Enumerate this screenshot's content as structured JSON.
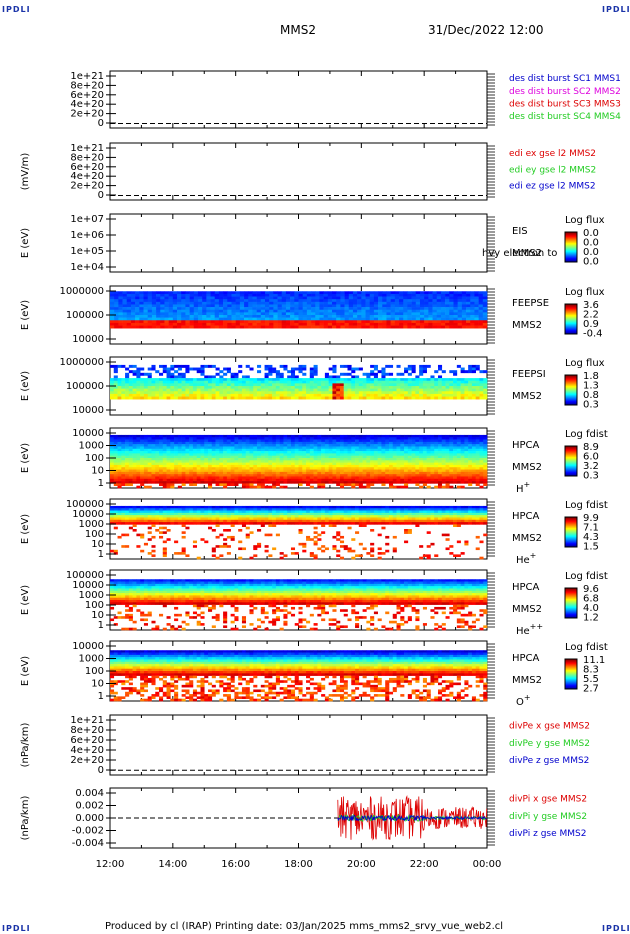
{
  "header": {
    "corner_tl": "IPDLI",
    "corner_tr": "IPDLI",
    "corner_bl": "IPDLI",
    "corner_br": "IPDLI",
    "title": "MMS2",
    "datetime": "31/Dec/2022 12:00"
  },
  "footer": {
    "text": "Produced by cl (IRAP)   Printing date: 03/Jan/2025   mms_mms2_srvy_vue_web2.cl"
  },
  "colors": {
    "black": "#000000",
    "blue": "#0000cc",
    "magenta": "#dd00dd",
    "red": "#dd0000",
    "green": "#22cc22",
    "darkblue": "#000099"
  },
  "chart_data": [
    {
      "type": "line",
      "panel": "des_dist",
      "ylim": [
        0,
        1.2e+21
      ],
      "ytick_labels": [
        "1e+21",
        "8e+20",
        "6e+20",
        "4e+20",
        "2e+20",
        "0"
      ],
      "xlim_hours": [
        12,
        24
      ],
      "series": [
        {
          "name": "des dist burst SC1 MMS1",
          "color": "#0000cc",
          "values": []
        },
        {
          "name": "des dist burst SC2 MMS2",
          "color": "#dd00dd",
          "values": []
        },
        {
          "name": "des dist burst SC3 MMS3",
          "color": "#dd0000",
          "values": []
        },
        {
          "name": "des dist burst SC4 MMS4",
          "color": "#22cc22",
          "values": []
        }
      ],
      "zero_line": true
    },
    {
      "type": "line",
      "panel": "edi",
      "ylabel": "(mV/m)",
      "ylim": [
        0,
        1.2e+21
      ],
      "ytick_labels": [
        "1e+21",
        "8e+20",
        "6e+20",
        "4e+20",
        "2e+20",
        "0"
      ],
      "series": [
        {
          "name": "edi ex gse l2 MMS2",
          "color": "#dd0000",
          "values": []
        },
        {
          "name": "edi ey gse l2 MMS2",
          "color": "#22cc22",
          "values": []
        },
        {
          "name": "edi ez gse l2 MMS2",
          "color": "#0000cc",
          "values": []
        }
      ],
      "zero_line": true
    },
    {
      "type": "heatmap",
      "panel": "eis",
      "ylabel": "E (eV)",
      "yscale": "log",
      "ytick_labels": [
        "1e+07",
        "1e+06",
        "1e+05",
        "1e+04"
      ],
      "right_labels": [
        "EIS",
        "MMS2"
      ],
      "overlay_text": "hvy electron to",
      "colorbar": {
        "title": "Log flux",
        "ticks": [
          "0.0",
          "0.0",
          "0.0",
          "0.0"
        ]
      }
    },
    {
      "type": "heatmap",
      "panel": "feeps_e",
      "ylabel": "E (eV)",
      "yscale": "log",
      "ytick_labels": [
        "1000000",
        "100000",
        "10000"
      ],
      "right_labels": [
        "FEEPSE",
        "MMS2"
      ],
      "colorbar": {
        "title": "Log flux",
        "ticks": [
          "3.6",
          "2.2",
          "0.9",
          "-0.4"
        ]
      }
    },
    {
      "type": "heatmap",
      "panel": "feeps_i",
      "ylabel": "E (eV)",
      "yscale": "log",
      "ytick_labels": [
        "1000000",
        "100000",
        "10000"
      ],
      "right_labels": [
        "FEEPSI",
        "MMS2"
      ],
      "colorbar": {
        "title": "Log flux",
        "ticks": [
          "1.8",
          "1.3",
          "0.8",
          "0.3"
        ]
      }
    },
    {
      "type": "heatmap",
      "panel": "hpca_h",
      "ylabel": "E (eV)",
      "yscale": "log",
      "ytick_labels": [
        "10000",
        "1000",
        "100",
        "10",
        "1"
      ],
      "right_labels": [
        "HPCA",
        "MMS2"
      ],
      "species": "H",
      "species_sup": "+",
      "colorbar": {
        "title": "Log fdist",
        "ticks": [
          "8.9",
          "6.0",
          "3.2",
          "0.3"
        ]
      }
    },
    {
      "type": "heatmap",
      "panel": "hpca_he",
      "ylabel": "E (eV)",
      "yscale": "log",
      "ytick_labels": [
        "100000",
        "10000",
        "1000",
        "100",
        "10",
        "1"
      ],
      "right_labels": [
        "HPCA",
        "MMS2"
      ],
      "species": "He",
      "species_sup": "+",
      "colorbar": {
        "title": "Log fdist",
        "ticks": [
          "9.9",
          "7.1",
          "4.3",
          "1.5"
        ]
      }
    },
    {
      "type": "heatmap",
      "panel": "hpca_hepp",
      "ylabel": "E (eV)",
      "yscale": "log",
      "ytick_labels": [
        "100000",
        "10000",
        "1000",
        "100",
        "10",
        "1"
      ],
      "right_labels": [
        "HPCA",
        "MMS2"
      ],
      "species": "He",
      "species_sup": "++",
      "colorbar": {
        "title": "Log fdist",
        "ticks": [
          "9.6",
          "6.8",
          "4.0",
          "1.2"
        ]
      }
    },
    {
      "type": "heatmap",
      "panel": "hpca_o",
      "ylabel": "E (eV)",
      "yscale": "log",
      "ytick_labels": [
        "10000",
        "1000",
        "100",
        "10",
        "1"
      ],
      "right_labels": [
        "HPCA",
        "MMS2"
      ],
      "species": "O",
      "species_sup": "+",
      "colorbar": {
        "title": "Log fdist",
        "ticks": [
          "11.1",
          "8.3",
          "5.5",
          "2.7"
        ]
      }
    },
    {
      "type": "line",
      "panel": "divpe",
      "ylabel": "(nPa/km)",
      "ylim": [
        0,
        1.2e+21
      ],
      "ytick_labels": [
        "1e+21",
        "8e+20",
        "6e+20",
        "4e+20",
        "2e+20",
        "0"
      ],
      "series": [
        {
          "name": "divPe x gse MMS2",
          "color": "#dd0000",
          "values": []
        },
        {
          "name": "divPe y gse MMS2",
          "color": "#22cc22",
          "values": []
        },
        {
          "name": "divPe z gse MMS2",
          "color": "#0000cc",
          "values": []
        }
      ],
      "zero_line": true
    },
    {
      "type": "line",
      "panel": "divpi",
      "ylabel": "(nPa/km)",
      "ylim": [
        -0.0055,
        0.0055
      ],
      "ytick_labels": [
        "0.004",
        "0.002",
        "0.000",
        "-0.002",
        "-0.004"
      ],
      "series": [
        {
          "name": "divPi x gse MMS2",
          "color": "#dd0000",
          "data_start": "19:15",
          "data_end": "00:00",
          "amplitude": 0.004
        },
        {
          "name": "divPi y gse MMS2",
          "color": "#22cc22",
          "data_start": "19:15",
          "data_end": "00:00",
          "amplitude": 0.0006
        },
        {
          "name": "divPi z gse MMS2",
          "color": "#0000cc",
          "data_start": "19:15",
          "data_end": "00:00",
          "amplitude": 0.0005
        }
      ],
      "zero_line": true
    }
  ],
  "x_axis": {
    "tick_labels": [
      "12:00",
      "14:00",
      "16:00",
      "18:00",
      "20:00",
      "22:00",
      "00:00"
    ]
  }
}
